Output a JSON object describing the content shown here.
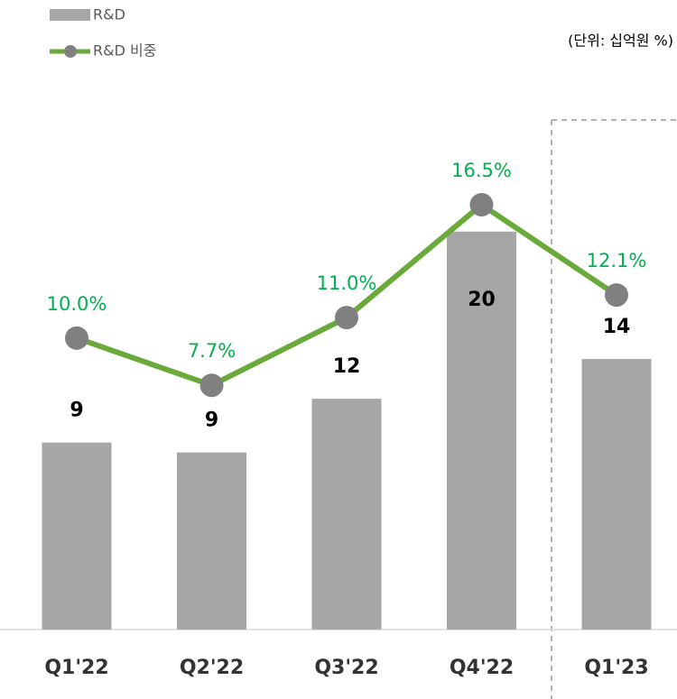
{
  "chart_data": {
    "type": "bar+line",
    "note": "(단위: 십억원 %)",
    "categories": [
      "Q1'22",
      "Q2'22",
      "Q3'22",
      "Q4'22",
      "Q1'23"
    ],
    "series": [
      {
        "name": "R&D",
        "type": "bar",
        "color": "#a6a6a6",
        "values": [
          9.4,
          8.9,
          11.6,
          20.0,
          13.6
        ],
        "value_labels": [
          "9",
          "9",
          "12",
          "20",
          "14"
        ]
      },
      {
        "name": "R&D 비중",
        "type": "line",
        "axis": "y2",
        "color": "#6aaa3a",
        "marker_color": "#808080",
        "label_color": "#00b050",
        "values": [
          10.0,
          7.7,
          11.0,
          16.5,
          12.1
        ],
        "value_labels": [
          "10.0%",
          "7.7%",
          "11.0%",
          "16.5%",
          "12.1%"
        ]
      }
    ],
    "ylim": [
      0,
      26.2
    ],
    "y2lim": [
      -4.2,
      21.2
    ]
  }
}
